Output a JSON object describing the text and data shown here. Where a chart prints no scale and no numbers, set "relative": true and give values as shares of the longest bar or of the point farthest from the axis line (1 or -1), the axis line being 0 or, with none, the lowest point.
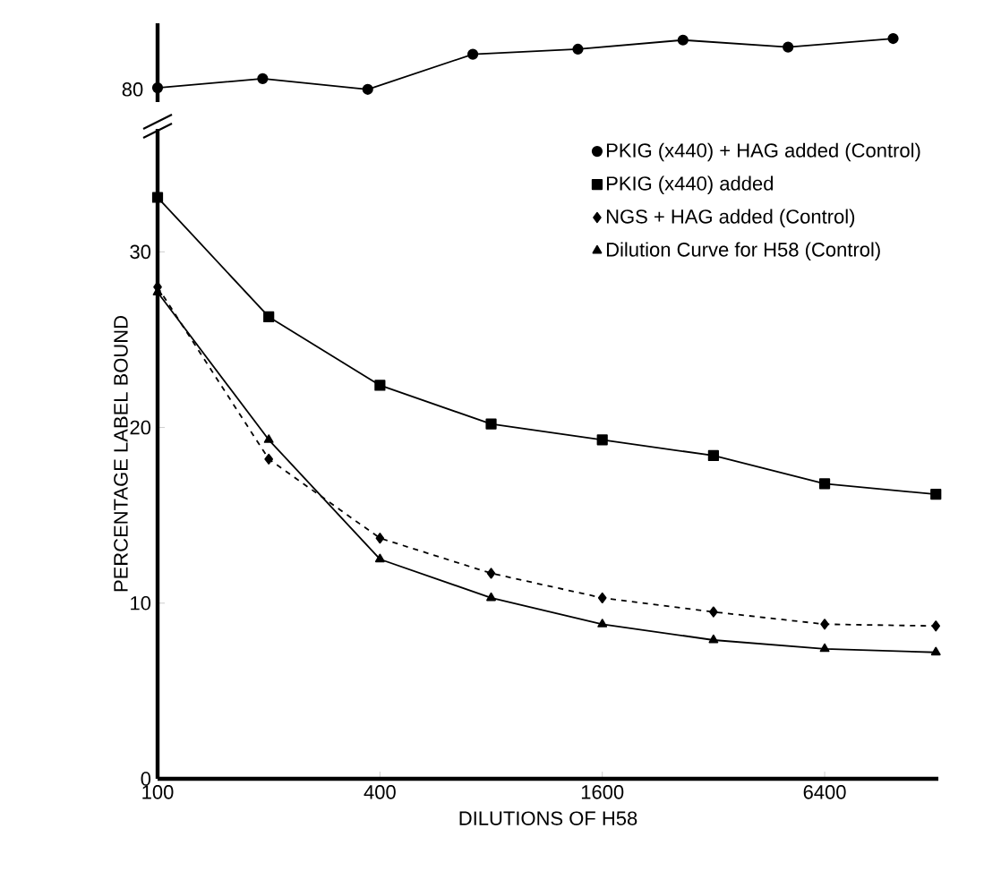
{
  "chart_data": [
    {
      "type": "line",
      "relative": true,
      "tick_labels": false,
      "categories": [
        null,
        null,
        null,
        null,
        null,
        null,
        null,
        null
      ],
      "annotations": [
        "80"
      ],
      "series": [
        {
          "name": "PKIG (x440) + HAG added (Control)",
          "color": "#000000",
          "marker": "circle",
          "line_style": "solid",
          "values": [
            0.03,
            0.21,
            0,
            0.69,
            0.79,
            0.97,
            0.83,
            1
          ]
        }
      ]
    },
    {
      "type": "line",
      "log": "x",
      "xlabel": "DILUTIONS OF H58",
      "ylabel": "PERCENTAGE LABEL BOUND",
      "x": [
        100,
        200,
        400,
        800,
        1600,
        3200,
        6400,
        12800
      ],
      "xlim": [
        100,
        13000
      ],
      "ylim": [
        0,
        37
      ],
      "xticks": [
        100,
        400,
        1600,
        6400
      ],
      "yticks": [
        0,
        10,
        20,
        30
      ],
      "legend": "top right",
      "series": [
        {
          "name": "PKIG (x440) added",
          "color": "#000000",
          "marker": "square",
          "line_style": "solid",
          "values": [
            33.1,
            26.3,
            22.4,
            20.2,
            19.3,
            18.4,
            16.8,
            16.2
          ]
        },
        {
          "name": "NGS + HAG added (Control)",
          "color": "#000000",
          "marker": "diamond",
          "line_style": "dashed",
          "values": [
            28.0,
            18.2,
            13.7,
            11.7,
            10.3,
            9.5,
            8.8,
            8.7
          ]
        },
        {
          "name": "Dilution Curve for H58 (Control)",
          "color": "#000000",
          "marker": "triangle",
          "line_style": "solid",
          "values": [
            27.7,
            19.3,
            12.5,
            10.3,
            8.8,
            7.9,
            7.4,
            7.2
          ]
        }
      ]
    }
  ]
}
